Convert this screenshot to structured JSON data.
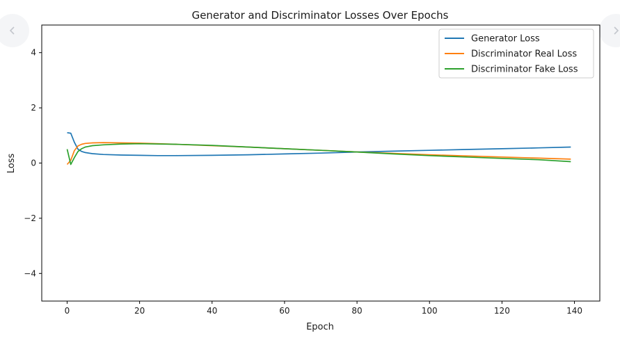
{
  "navigation": {
    "prev_icon": "chevron-left-icon",
    "next_icon": "chevron-right-icon"
  },
  "chart_data": {
    "type": "line",
    "title": "Generator and Discriminator Losses Over Epochs",
    "xlabel": "Epoch",
    "ylabel": "Loss",
    "xlim": [
      -7,
      147
    ],
    "ylim": [
      -5,
      5
    ],
    "xticks": [
      0,
      20,
      40,
      60,
      80,
      100,
      120,
      140
    ],
    "xtick_labels": [
      "0",
      "20",
      "40",
      "60",
      "80",
      "100",
      "120",
      "140"
    ],
    "yticks": [
      -4,
      -2,
      0,
      2,
      4
    ],
    "ytick_labels": [
      "−4",
      "−2",
      "0",
      "2",
      "4"
    ],
    "grid": false,
    "legend_position": "top-right",
    "series": [
      {
        "name": "Generator Loss",
        "color": "#1f77b4",
        "x": [
          0,
          1,
          2,
          3,
          4,
          5,
          7,
          10,
          15,
          20,
          25,
          30,
          40,
          50,
          60,
          70,
          80,
          90,
          100,
          110,
          120,
          130,
          139
        ],
        "y": [
          1.1,
          1.08,
          0.75,
          0.5,
          0.42,
          0.38,
          0.34,
          0.31,
          0.29,
          0.28,
          0.27,
          0.27,
          0.28,
          0.3,
          0.33,
          0.36,
          0.4,
          0.43,
          0.46,
          0.49,
          0.52,
          0.55,
          0.58
        ]
      },
      {
        "name": "Discriminator Real Loss",
        "color": "#ff7f0e",
        "x": [
          0,
          1,
          2,
          3,
          4,
          5,
          7,
          10,
          15,
          20,
          30,
          40,
          50,
          60,
          70,
          80,
          90,
          100,
          110,
          120,
          130,
          139
        ],
        "y": [
          -0.05,
          0.1,
          0.45,
          0.62,
          0.68,
          0.71,
          0.73,
          0.74,
          0.73,
          0.72,
          0.68,
          0.63,
          0.58,
          0.52,
          0.46,
          0.4,
          0.35,
          0.3,
          0.26,
          0.22,
          0.18,
          0.14
        ]
      },
      {
        "name": "Discriminator Fake Loss",
        "color": "#2ca02c",
        "x": [
          0,
          1,
          2,
          3,
          4,
          5,
          7,
          10,
          15,
          20,
          30,
          40,
          50,
          60,
          70,
          80,
          90,
          100,
          110,
          120,
          130,
          139
        ],
        "y": [
          0.5,
          -0.05,
          0.2,
          0.42,
          0.52,
          0.58,
          0.63,
          0.66,
          0.69,
          0.7,
          0.68,
          0.64,
          0.58,
          0.52,
          0.46,
          0.4,
          0.33,
          0.27,
          0.22,
          0.17,
          0.12,
          0.05
        ]
      }
    ]
  }
}
